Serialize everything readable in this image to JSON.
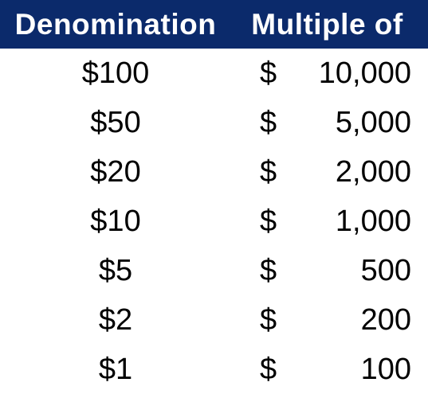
{
  "table": {
    "headers": {
      "denomination": "Denomination",
      "multiple_of": "Multiple of"
    },
    "currency_symbol": "$",
    "rows": [
      {
        "denomination": "$100",
        "multiple": "10,000"
      },
      {
        "denomination": "$50",
        "multiple": "5,000"
      },
      {
        "denomination": "$20",
        "multiple": "2,000"
      },
      {
        "denomination": "$10",
        "multiple": "1,000"
      },
      {
        "denomination": "$5",
        "multiple": "500"
      },
      {
        "denomination": "$2",
        "multiple": "200"
      },
      {
        "denomination": "$1",
        "multiple": "100"
      }
    ]
  },
  "colors": {
    "header_background": "#0b2a6b",
    "header_text": "#ffffff",
    "body_text": "#000000"
  }
}
